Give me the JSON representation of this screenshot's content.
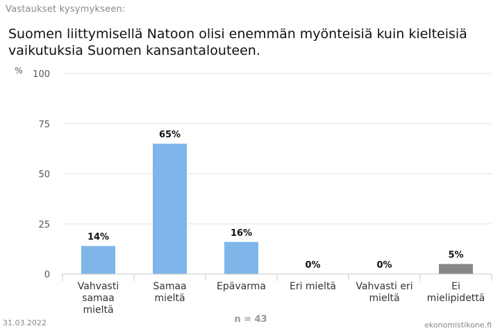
{
  "header": {
    "subtitle": "Vastaukset kysymykseen:",
    "title": "Suomen liittymisellä Natoon olisi enemmän myönteisiä kuin kielteisiä vaikutuksia Suomen kansantalouteen."
  },
  "footer": {
    "date": "31.03.2022",
    "source": "ekonomistikone.fi",
    "n_label": "n = 43"
  },
  "colors": {
    "opinion_bar": "#7eb6ea",
    "no_opinion_bar": "#878787",
    "gridline": "#e3e3e3"
  },
  "chart_data": {
    "type": "bar",
    "title": "Suomen liittymisellä Natoon olisi enemmän myönteisiä kuin kielteisiä vaikutuksia Suomen kansantalouteen.",
    "subtitle": "Vastaukset kysymykseen:",
    "ylabel": "%",
    "ylim": [
      0,
      100
    ],
    "yticks": [
      0,
      25,
      50,
      75,
      100
    ],
    "grid": true,
    "categories": [
      [
        "Vahvasti",
        "samaa",
        "mieltä"
      ],
      [
        "Samaa",
        "mieltä"
      ],
      [
        "Epävarma"
      ],
      [
        "Eri mieltä"
      ],
      [
        "Vahvasti eri",
        "mieltä"
      ],
      [
        "Ei",
        "mielipidettä"
      ]
    ],
    "values": [
      14,
      65,
      16,
      0,
      0,
      5
    ],
    "value_labels": [
      "14%",
      "65%",
      "16%",
      "0%",
      "0%",
      "5%"
    ],
    "bar_color_keys": [
      "opinion_bar",
      "opinion_bar",
      "opinion_bar",
      "opinion_bar",
      "opinion_bar",
      "no_opinion_bar"
    ],
    "annotation": "n = 43"
  }
}
